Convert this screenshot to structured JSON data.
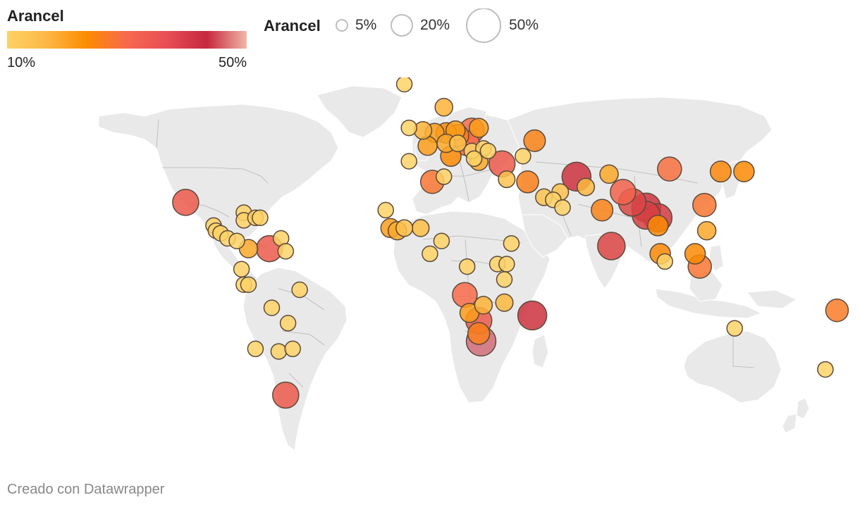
{
  "legend": {
    "color_title": "Arancel",
    "color_min_label": "10%",
    "color_max_label": "50%",
    "color_stops": [
      "#fed266",
      "#fcb746",
      "#fb8c00",
      "#f7694f",
      "#e84e56",
      "#c5283d",
      "#f1b7a8"
    ],
    "size_title": "Arancel",
    "sizes": [
      {
        "label": "5%",
        "value": 5
      },
      {
        "label": "20%",
        "value": 20
      },
      {
        "label": "50%",
        "value": 50
      }
    ]
  },
  "colors": {
    "land": "#e9e9e9",
    "border": "#b5b5b5",
    "bubble_stroke": "#5b4a3a"
  },
  "footer": {
    "credit": "Creado con Datawrapper"
  },
  "map_data": {
    "type": "symbol-map",
    "value": "Arancel (%)",
    "points": [
      {
        "lat": 70,
        "lon": -8,
        "value": 10
      },
      {
        "lat": 61,
        "lon": 9,
        "value": 16
      },
      {
        "lat": 53,
        "lon": -6,
        "value": 10
      },
      {
        "lat": 52,
        "lon": 0,
        "value": 16
      },
      {
        "lat": 51,
        "lon": 5,
        "value": 20
      },
      {
        "lat": 51,
        "lon": 10,
        "value": 24
      },
      {
        "lat": 52,
        "lon": 14,
        "value": 20
      },
      {
        "lat": 52,
        "lon": 21,
        "value": 36
      },
      {
        "lat": 53,
        "lon": 24,
        "value": 20
      },
      {
        "lat": 50,
        "lon": 15,
        "value": 28
      },
      {
        "lat": 47,
        "lon": 10,
        "value": 18
      },
      {
        "lat": 47,
        "lon": 19,
        "value": 36
      },
      {
        "lat": 47,
        "lon": 15,
        "value": 13
      },
      {
        "lat": 48,
        "lon": 48,
        "value": 27
      },
      {
        "lat": 46,
        "lon": 2,
        "value": 20
      },
      {
        "lat": 42,
        "lon": 12,
        "value": 24
      },
      {
        "lat": 40,
        "lon": -6,
        "value": 10
      },
      {
        "lat": 44,
        "lon": 21,
        "value": 10
      },
      {
        "lat": 45,
        "lon": 26,
        "value": 10
      },
      {
        "lat": 44,
        "lon": 28,
        "value": 10
      },
      {
        "lat": 41,
        "lon": 22,
        "value": 10
      },
      {
        "lat": 40,
        "lon": 24,
        "value": 18
      },
      {
        "lat": 39,
        "lon": 34,
        "value": 40
      },
      {
        "lat": 42,
        "lon": 43,
        "value": 10
      },
      {
        "lat": 32,
        "lon": 4,
        "value": 32
      },
      {
        "lat": 34,
        "lon": 9,
        "value": 10
      },
      {
        "lat": 33,
        "lon": 36,
        "value": 13
      },
      {
        "lat": 32,
        "lon": 45,
        "value": 28
      },
      {
        "lat": 34,
        "lon": 66,
        "value": 48
      },
      {
        "lat": 35,
        "lon": 80,
        "value": 18
      },
      {
        "lat": 30,
        "lon": 70,
        "value": 15
      },
      {
        "lat": 28,
        "lon": 59,
        "value": 13
      },
      {
        "lat": 26,
        "lon": 52,
        "value": 13
      },
      {
        "lat": 25,
        "lon": 56,
        "value": 10
      },
      {
        "lat": 22,
        "lon": 60,
        "value": 10
      },
      {
        "lat": 21,
        "lon": 77,
        "value": 27
      },
      {
        "lat": 28,
        "lon": 86,
        "value": 38
      },
      {
        "lat": 24,
        "lon": 90,
        "value": 44
      },
      {
        "lat": 22,
        "lon": 96,
        "value": 48
      },
      {
        "lat": 18,
        "lon": 101,
        "value": 46
      },
      {
        "lat": 19,
        "lon": 96,
        "value": 45
      },
      {
        "lat": 15,
        "lon": 101,
        "value": 24
      },
      {
        "lat": 37,
        "lon": 106,
        "value": 34
      },
      {
        "lat": 36,
        "lon": 128,
        "value": 25
      },
      {
        "lat": 36,
        "lon": 138,
        "value": 24
      },
      {
        "lat": 23,
        "lon": 121,
        "value": 32
      },
      {
        "lat": 13,
        "lon": 122,
        "value": 18
      },
      {
        "lat": 4,
        "lon": 102,
        "value": 24
      },
      {
        "lat": 1,
        "lon": 104,
        "value": 10
      },
      {
        "lat": 4,
        "lon": 117,
        "value": 24
      },
      {
        "lat": -1,
        "lon": 119,
        "value": 32
      },
      {
        "lat": 7,
        "lon": 81,
        "value": 44
      },
      {
        "lat": -18,
        "lon": 178,
        "value": 30
      },
      {
        "lat": -25,
        "lon": 134,
        "value": 10
      },
      {
        "lat": -41,
        "lon": 173,
        "value": 10
      },
      {
        "lat": 24,
        "lon": -102,
        "value": 40
      },
      {
        "lat": 20,
        "lon": -77,
        "value": 10
      },
      {
        "lat": 17,
        "lon": -77,
        "value": 10
      },
      {
        "lat": 18,
        "lon": -72,
        "value": 10
      },
      {
        "lat": 18,
        "lon": -70,
        "value": 10
      },
      {
        "lat": 15,
        "lon": -90,
        "value": 10
      },
      {
        "lat": 13,
        "lon": -89,
        "value": 10
      },
      {
        "lat": 12,
        "lon": -87,
        "value": 10
      },
      {
        "lat": 10,
        "lon": -84,
        "value": 10
      },
      {
        "lat": 9,
        "lon": -80,
        "value": 10
      },
      {
        "lat": 6,
        "lon": -75,
        "value": 18
      },
      {
        "lat": 10,
        "lon": -61,
        "value": 10
      },
      {
        "lat": 6,
        "lon": -66,
        "value": 40
      },
      {
        "lat": 5,
        "lon": -59,
        "value": 10
      },
      {
        "lat": -2,
        "lon": -78,
        "value": 10
      },
      {
        "lat": -8,
        "lon": -77,
        "value": 10
      },
      {
        "lat": -8,
        "lon": -75,
        "value": 10
      },
      {
        "lat": -10,
        "lon": -53,
        "value": 10
      },
      {
        "lat": -17,
        "lon": -65,
        "value": 10
      },
      {
        "lat": -23,
        "lon": -58,
        "value": 10
      },
      {
        "lat": -33,
        "lon": -72,
        "value": 10
      },
      {
        "lat": -34,
        "lon": -62,
        "value": 10
      },
      {
        "lat": -33,
        "lon": -56,
        "value": 10
      },
      {
        "lat": -51,
        "lon": -59,
        "value": 40
      },
      {
        "lat": 21,
        "lon": -16,
        "value": 10
      },
      {
        "lat": 14,
        "lon": -14,
        "value": 20
      },
      {
        "lat": 13,
        "lon": -11,
        "value": 18
      },
      {
        "lat": 14,
        "lon": -8,
        "value": 13
      },
      {
        "lat": 14,
        "lon": -1,
        "value": 14
      },
      {
        "lat": 9,
        "lon": 8,
        "value": 10
      },
      {
        "lat": 4,
        "lon": 3,
        "value": 10
      },
      {
        "lat": 8,
        "lon": 38,
        "value": 10
      },
      {
        "lat": -1,
        "lon": 19,
        "value": 10
      },
      {
        "lat": 0,
        "lon": 32,
        "value": 10
      },
      {
        "lat": 0,
        "lon": 36,
        "value": 10
      },
      {
        "lat": -6,
        "lon": 35,
        "value": 10
      },
      {
        "lat": -12,
        "lon": 18,
        "value": 36
      },
      {
        "lat": -16,
        "lon": 26,
        "value": 16
      },
      {
        "lat": -15,
        "lon": 35,
        "value": 15
      },
      {
        "lat": -19,
        "lon": 20,
        "value": 20
      },
      {
        "lat": -22,
        "lon": 24,
        "value": 40
      },
      {
        "lat": -27,
        "lon": 24,
        "value": 28
      },
      {
        "lat": -30,
        "lon": 25,
        "value": 50
      },
      {
        "lat": -20,
        "lon": 47,
        "value": 48
      }
    ]
  }
}
